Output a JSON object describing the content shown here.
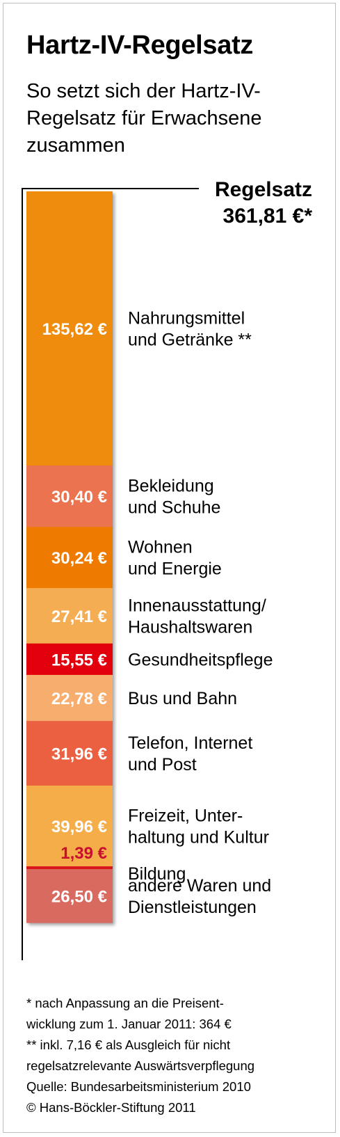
{
  "title": "Hartz-IV-Regelsatz",
  "subtitle": "So setzt sich der Hartz-IV-Regelsatz für Erwachsene zusammen",
  "total": {
    "label": "Regelsatz",
    "value": "361,81 €*"
  },
  "footnotes": [
    "* nach Anpassung an die Preisent-",
    "wicklung zum 1. Januar 2011: 364 €",
    "** inkl. 7,16 € als Ausgleich für nicht",
    "regelsatzrelevante Auswärtsverpflegung",
    "Quelle: Bundesarbeitsministerium 2010",
    "© Hans-Böckler-Stiftung 2011"
  ],
  "chart_data": {
    "type": "bar",
    "stacked": true,
    "total": 361.81,
    "unit": "€",
    "segments": [
      {
        "value": 135.62,
        "value_label": "135,62 €",
        "label_lines": [
          "Nahrungsmittel",
          "und Getränke **"
        ],
        "color": "#ef8c0a",
        "value_color": "#ffffff"
      },
      {
        "value": 30.4,
        "value_label": "30,40 €",
        "label_lines": [
          "Bekleidung",
          "und Schuhe"
        ],
        "color": "#eb7350",
        "value_color": "#ffffff"
      },
      {
        "value": 30.24,
        "value_label": "30,24 €",
        "label_lines": [
          "Wohnen",
          "und Energie"
        ],
        "color": "#ee7a06",
        "value_color": "#ffffff"
      },
      {
        "value": 27.41,
        "value_label": "27,41 €",
        "label_lines": [
          "Innenausstattung/",
          "Haushaltswaren"
        ],
        "color": "#f4ad52",
        "value_color": "#ffffff"
      },
      {
        "value": 15.55,
        "value_label": "15,55 €",
        "label_lines": [
          "Gesundheitspflege"
        ],
        "color": "#e3000d",
        "value_color": "#ffffff"
      },
      {
        "value": 22.78,
        "value_label": "22,78 €",
        "label_lines": [
          "Bus und Bahn"
        ],
        "color": "#f6ad6e",
        "value_color": "#ffffff"
      },
      {
        "value": 31.96,
        "value_label": "31,96 €",
        "label_lines": [
          "Telefon, Internet",
          "und Post"
        ],
        "color": "#ea6040",
        "value_color": "#ffffff"
      },
      {
        "value": 39.96,
        "value_label": "39,96 €",
        "label_lines": [
          "Freizeit, Unter-",
          "haltung und Kultur"
        ],
        "color": "#f4ad4a",
        "value_color": "#ffffff"
      },
      {
        "value": 1.39,
        "value_label": "1,39 €",
        "label_lines": [
          "Bildung"
        ],
        "color": "#d9141c",
        "value_color": "#c8102e"
      },
      {
        "value": 26.5,
        "value_label": "26,50 €",
        "label_lines": [
          "andere Waren und",
          "Dienstleistungen"
        ],
        "color": "#d86b60",
        "value_color": "#ffffff"
      }
    ]
  }
}
